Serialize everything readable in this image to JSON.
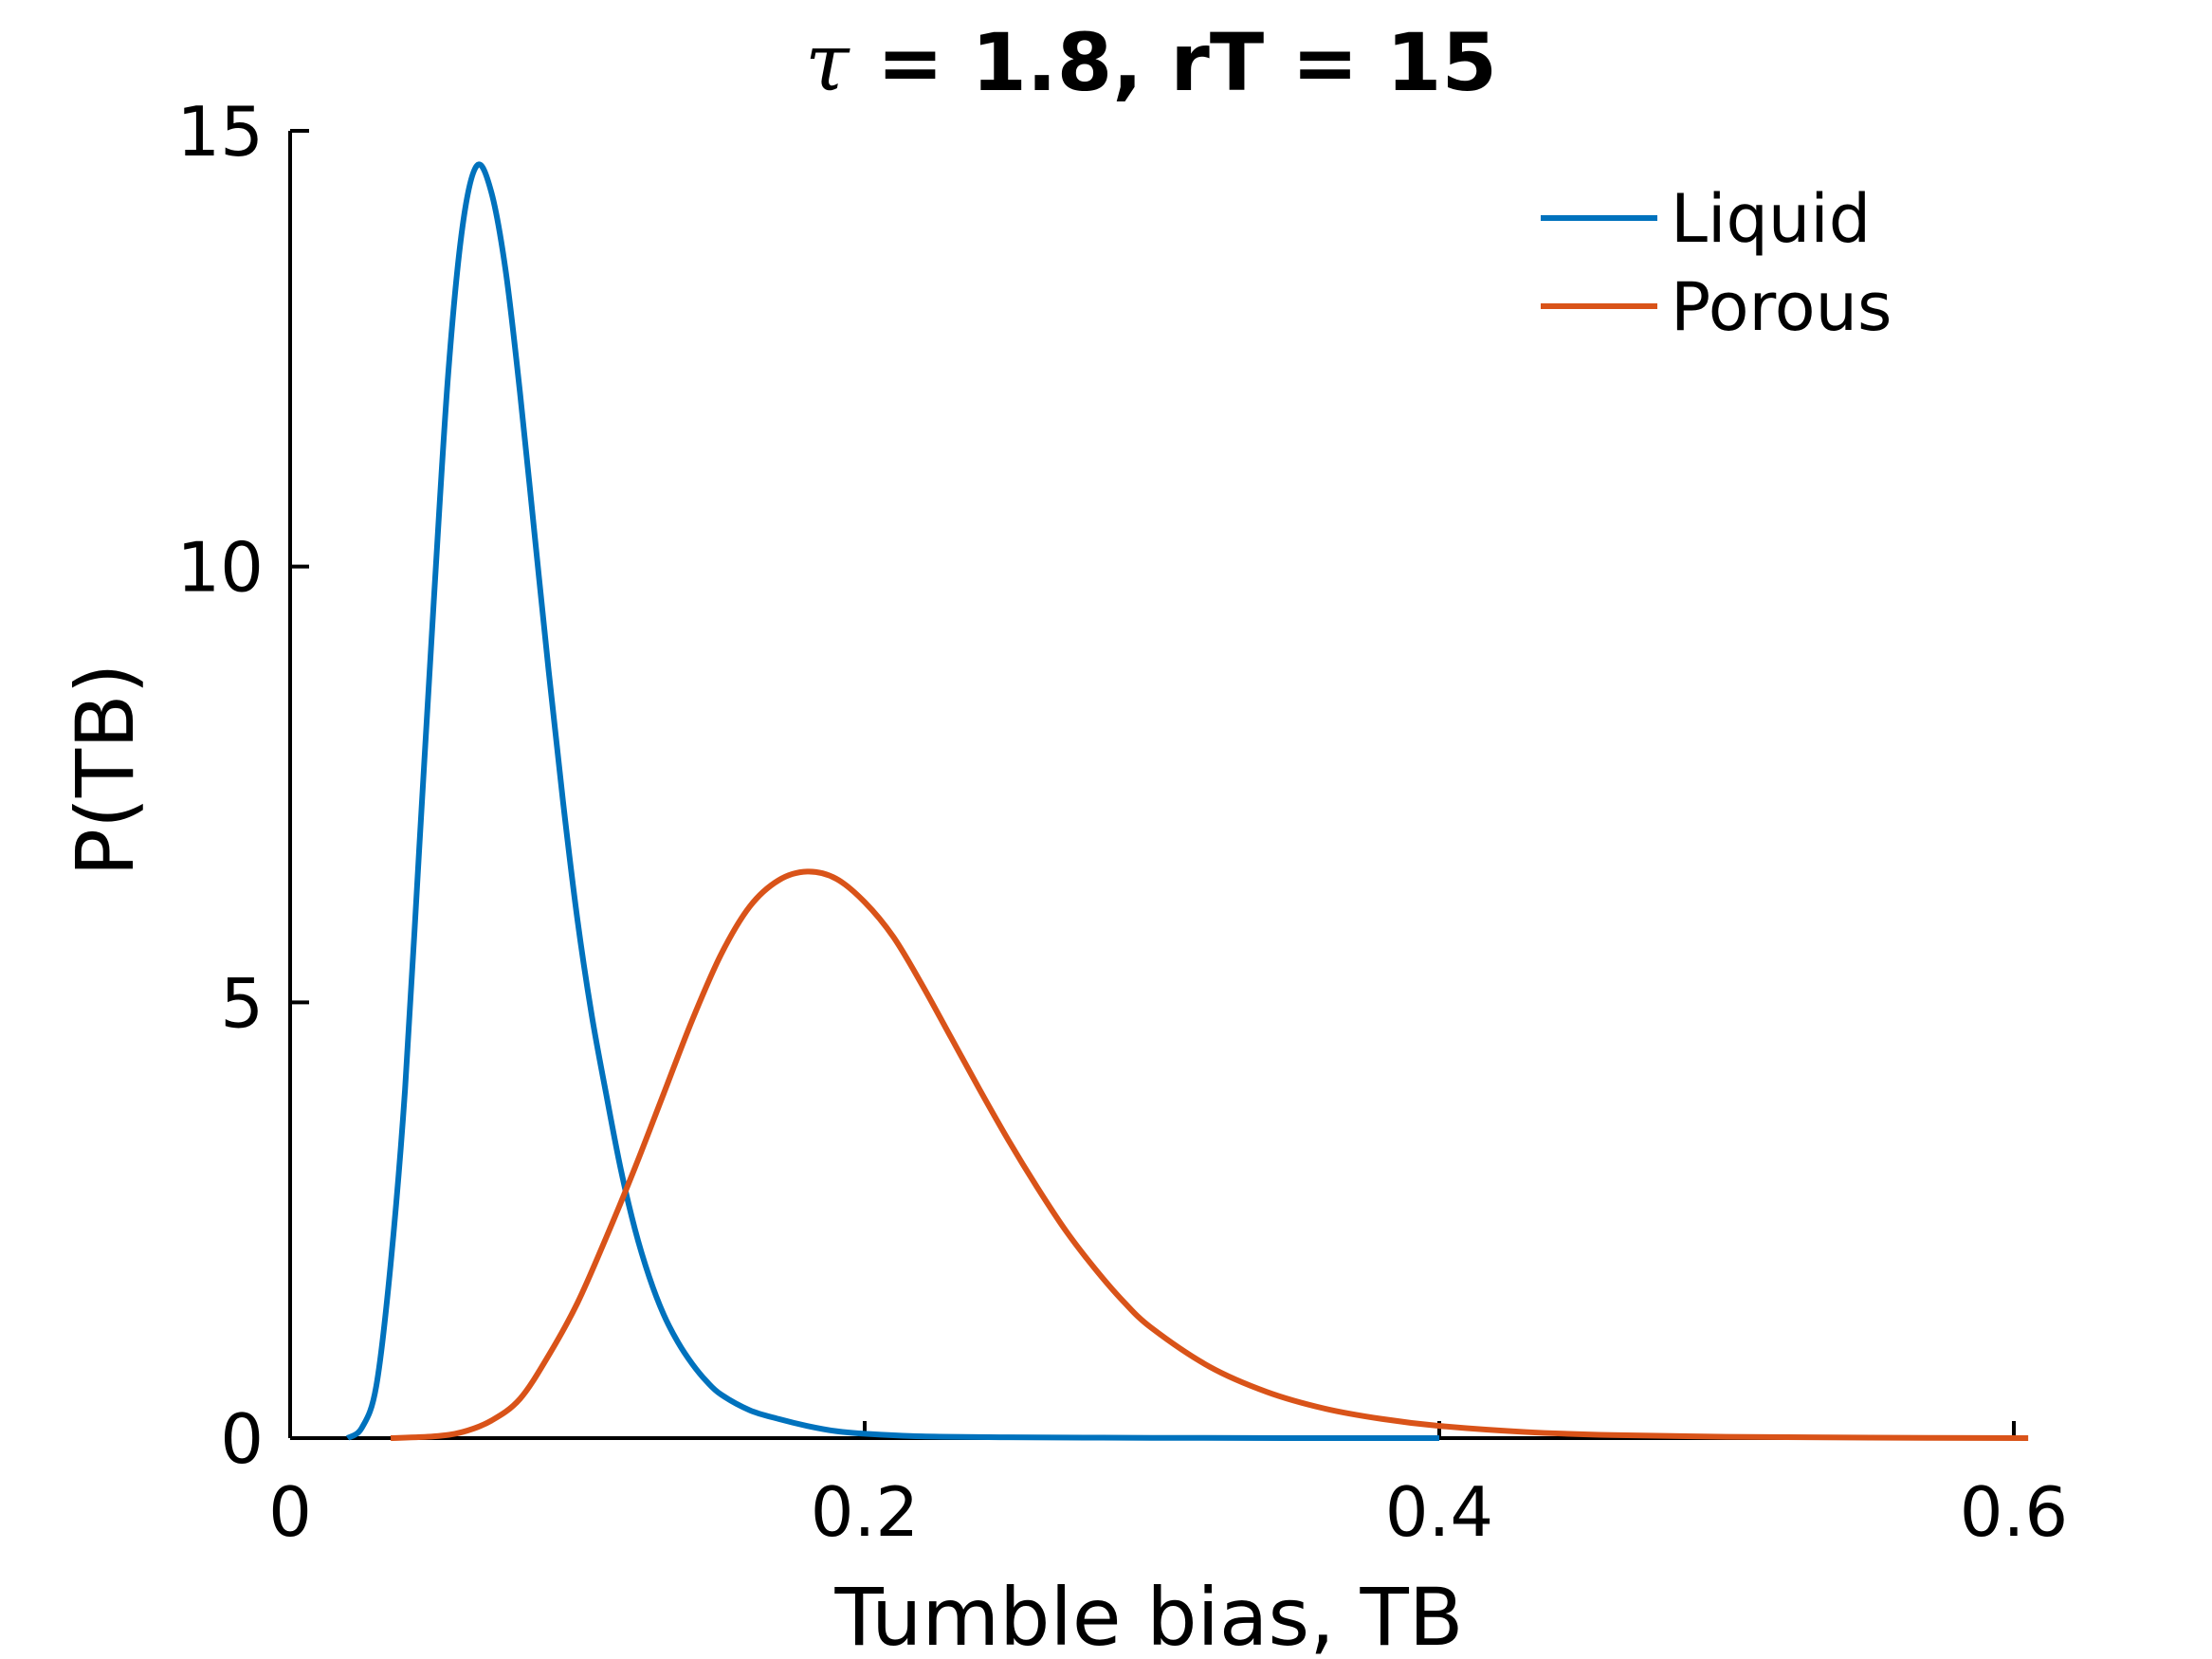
{
  "chart_data": {
    "type": "line",
    "title": {
      "symbol": "τ",
      "rest": " = 1.8, rT = 15"
    },
    "xlabel": "Tumble bias, TB",
    "ylabel": "P(TB)",
    "xlim": [
      0,
      0.6
    ],
    "ylim": [
      0,
      15
    ],
    "xticks": [
      0,
      0.2,
      0.4,
      0.6
    ],
    "xtick_labels": [
      "0",
      "0.2",
      "0.4",
      "0.6"
    ],
    "yticks": [
      0,
      5,
      10,
      15
    ],
    "ytick_labels": [
      "0",
      "5",
      "10",
      "15"
    ],
    "grid": false,
    "legend_position": "top-right",
    "series": [
      {
        "name": "Liquid",
        "color": "#0072bd",
        "x": [
          0.02,
          0.025,
          0.03,
          0.035,
          0.04,
          0.045,
          0.05,
          0.055,
          0.06,
          0.065,
          0.07,
          0.075,
          0.08,
          0.085,
          0.09,
          0.095,
          0.1,
          0.105,
          0.11,
          0.115,
          0.12,
          0.125,
          0.13,
          0.135,
          0.14,
          0.145,
          0.15,
          0.16,
          0.17,
          0.18,
          0.19,
          0.2,
          0.22,
          0.25,
          0.3,
          0.35,
          0.4
        ],
        "y": [
          0.0,
          0.12,
          0.6,
          2.0,
          4.0,
          6.8,
          9.6,
          12.2,
          13.9,
          14.6,
          14.3,
          13.4,
          12.0,
          10.4,
          8.8,
          7.3,
          5.95,
          4.85,
          3.95,
          3.1,
          2.4,
          1.85,
          1.42,
          1.1,
          0.85,
          0.65,
          0.5,
          0.32,
          0.22,
          0.14,
          0.08,
          0.05,
          0.02,
          0.01,
          0.003,
          0.0005,
          0.0
        ]
      },
      {
        "name": "Porous",
        "color": "#d95319",
        "x": [
          0.035,
          0.05,
          0.06,
          0.07,
          0.08,
          0.09,
          0.1,
          0.11,
          0.12,
          0.13,
          0.14,
          0.15,
          0.16,
          0.17,
          0.18,
          0.19,
          0.2,
          0.21,
          0.22,
          0.23,
          0.24,
          0.25,
          0.26,
          0.27,
          0.28,
          0.29,
          0.3,
          0.32,
          0.34,
          0.36,
          0.38,
          0.4,
          0.43,
          0.46,
          0.5,
          0.55,
          0.605
        ],
        "y": [
          0.0,
          0.02,
          0.07,
          0.2,
          0.45,
          0.95,
          1.55,
          2.3,
          3.1,
          3.95,
          4.8,
          5.55,
          6.1,
          6.4,
          6.5,
          6.42,
          6.15,
          5.75,
          5.2,
          4.6,
          4.0,
          3.42,
          2.88,
          2.38,
          1.95,
          1.57,
          1.26,
          0.82,
          0.53,
          0.34,
          0.22,
          0.14,
          0.07,
          0.035,
          0.015,
          0.005,
          0.0
        ]
      }
    ]
  }
}
